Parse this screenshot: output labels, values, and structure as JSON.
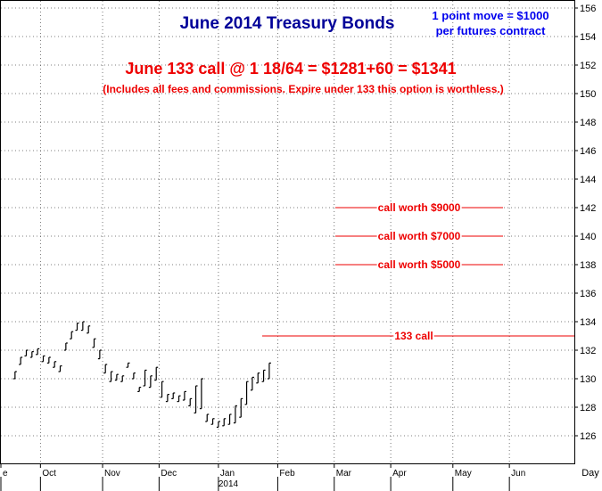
{
  "chart_data": {
    "type": "bar",
    "title": "June 2014 Treasury Bonds",
    "note": [
      "1 point move = $1000",
      "per futures contract"
    ],
    "headline": "June 133 call @ 1 18/64 = $1281+60 = $1341",
    "subheadline": "(Includes all fees and commissions. Expire under 133 this option is worthless.)",
    "xlabel": "Day",
    "ylim": [
      124,
      156.5
    ],
    "yticks": [
      "156",
      "154",
      "152",
      "150",
      "148",
      "146",
      "144",
      "142",
      "140",
      "138",
      "136",
      "134",
      "132",
      "130",
      "128",
      "126"
    ],
    "x_month_ticks": [
      {
        "label": "e",
        "x": 0
      },
      {
        "label": "Oct",
        "x": 14
      },
      {
        "label": "Nov",
        "x": 36
      },
      {
        "label": "Dec",
        "x": 56
      },
      {
        "label": "Jan",
        "x": 77
      },
      {
        "label": "Feb",
        "x": 98
      },
      {
        "label": "Mar",
        "x": 118
      },
      {
        "label": "Apr",
        "x": 138
      },
      {
        "label": "May",
        "x": 160
      },
      {
        "label": "Jun",
        "x": 180
      }
    ],
    "year_label": "2014",
    "xlim": [
      0,
      203
    ],
    "annotations": [
      {
        "label": "call worth $9000",
        "value": 142
      },
      {
        "label": "call worth $7000",
        "value": 140
      },
      {
        "label": "call worth $5000",
        "value": 138
      },
      {
        "label": "133 call",
        "value": 133
      }
    ],
    "bars": [
      {
        "x": 5,
        "high": 130.5,
        "low": 130.0
      },
      {
        "x": 7,
        "high": 131.5,
        "low": 131.0
      },
      {
        "x": 9,
        "high": 132.0,
        "low": 131.6
      },
      {
        "x": 11,
        "high": 131.9,
        "low": 131.5
      },
      {
        "x": 13,
        "high": 132.1,
        "low": 131.7
      },
      {
        "x": 15,
        "high": 131.6,
        "low": 131.2
      },
      {
        "x": 17,
        "high": 131.5,
        "low": 131.1
      },
      {
        "x": 19,
        "high": 131.2,
        "low": 130.8
      },
      {
        "x": 21,
        "high": 130.9,
        "low": 130.5
      },
      {
        "x": 23,
        "high": 132.5,
        "low": 132.0
      },
      {
        "x": 25,
        "high": 133.3,
        "low": 132.8
      },
      {
        "x": 27,
        "high": 133.9,
        "low": 133.4
      },
      {
        "x": 29,
        "high": 134.0,
        "low": 133.4
      },
      {
        "x": 31,
        "high": 133.7,
        "low": 133.2
      },
      {
        "x": 33,
        "high": 132.8,
        "low": 132.2
      },
      {
        "x": 35,
        "high": 132.0,
        "low": 131.4
      },
      {
        "x": 37,
        "high": 131.0,
        "low": 130.4
      },
      {
        "x": 39,
        "high": 130.5,
        "low": 129.8
      },
      {
        "x": 41,
        "high": 130.3,
        "low": 129.9
      },
      {
        "x": 43,
        "high": 130.2,
        "low": 129.8
      },
      {
        "x": 45,
        "high": 131.1,
        "low": 130.8
      },
      {
        "x": 47,
        "high": 130.4,
        "low": 130.0
      },
      {
        "x": 49,
        "high": 129.4,
        "low": 129.1
      },
      {
        "x": 51,
        "high": 130.6,
        "low": 129.5
      },
      {
        "x": 53,
        "high": 130.2,
        "low": 129.4
      },
      {
        "x": 55,
        "high": 130.8,
        "low": 129.9
      },
      {
        "x": 57,
        "high": 129.8,
        "low": 128.7
      },
      {
        "x": 59,
        "high": 128.9,
        "low": 128.4
      },
      {
        "x": 61,
        "high": 129.0,
        "low": 128.6
      },
      {
        "x": 63,
        "high": 128.8,
        "low": 128.4
      },
      {
        "x": 65,
        "high": 129.1,
        "low": 128.5
      },
      {
        "x": 67,
        "high": 128.6,
        "low": 128.1
      },
      {
        "x": 69,
        "high": 129.5,
        "low": 127.6
      },
      {
        "x": 71,
        "high": 130.0,
        "low": 127.9
      },
      {
        "x": 73,
        "high": 127.5,
        "low": 127.0
      },
      {
        "x": 75,
        "high": 127.2,
        "low": 126.8
      },
      {
        "x": 77,
        "high": 127.0,
        "low": 126.6
      },
      {
        "x": 79,
        "high": 127.2,
        "low": 126.7
      },
      {
        "x": 81,
        "high": 127.5,
        "low": 126.8
      },
      {
        "x": 83,
        "high": 128.1,
        "low": 126.9
      },
      {
        "x": 85,
        "high": 128.6,
        "low": 127.3
      },
      {
        "x": 87,
        "high": 129.8,
        "low": 128.2
      },
      {
        "x": 89,
        "high": 130.1,
        "low": 129.2
      },
      {
        "x": 91,
        "high": 130.4,
        "low": 129.7
      },
      {
        "x": 93,
        "high": 130.6,
        "low": 129.8
      },
      {
        "x": 95,
        "high": 131.1,
        "low": 130.0
      }
    ]
  }
}
